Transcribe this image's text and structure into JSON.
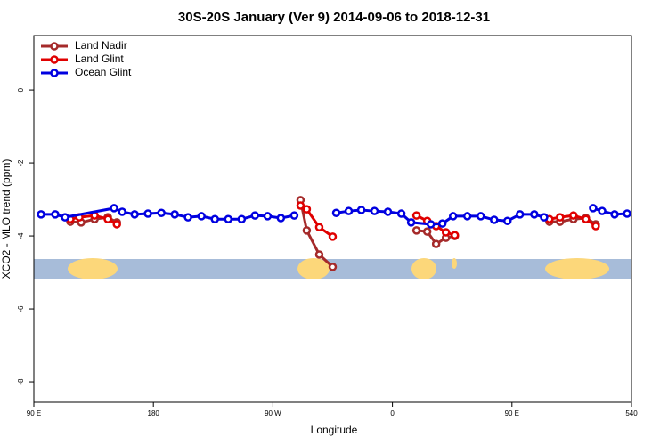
{
  "chart_data": {
    "type": "line",
    "title": "30S-20S January (Ver 9)   2014-09-06 to 2018-12-31",
    "x_label": "Longitude",
    "y_label": "XCO2 - MLO trend (ppm)",
    "xlim": [
      90,
      540
    ],
    "xticks": [
      {
        "value": 90,
        "label": "90 E"
      },
      180,
      {
        "value": 270,
        "label": "90 W"
      },
      {
        "value": 360,
        "label": "0"
      },
      {
        "value": 450,
        "label": "90 E"
      },
      540
    ],
    "ylim": [
      -8.56,
      1.49
    ],
    "yticks": [
      0,
      -2,
      -4,
      -6,
      -8
    ],
    "legend": "top-left",
    "series": [
      {
        "name": "Land Nadir",
        "color": "#a52a2a",
        "x": [
          117.5,
          125.6,
          135.7,
          145.7,
          152.5,
          null,
          290.8,
          295.5,
          304.9,
          315.0,
          null,
          378.1,
          386.2,
          392.9,
          400.3,
          407.0,
          null,
          478.2,
          486.2,
          496.3,
          505.7,
          513.1
        ],
        "values": [
          -3.61,
          -3.63,
          -3.54,
          -3.49,
          -3.63,
          null,
          -3.02,
          -3.85,
          -4.51,
          -4.85,
          null,
          -3.85,
          -3.88,
          -4.22,
          -4.05,
          -4.0,
          null,
          -3.61,
          -3.61,
          -3.54,
          -3.51,
          -3.68
        ]
      },
      {
        "name": "Land Glint",
        "color": "#e00000",
        "x": [
          117.5,
          124.3,
          135.7,
          145.7,
          152.5,
          null,
          290.8,
          295.5,
          304.9,
          315.0,
          null,
          378.1,
          386.2,
          392.9,
          400.3,
          407.0,
          null,
          478.2,
          486.2,
          496.3,
          505.7,
          513.1
        ],
        "values": [
          -3.54,
          -3.49,
          -3.44,
          -3.54,
          -3.68,
          null,
          -3.17,
          -3.27,
          -3.76,
          -4.02,
          null,
          -3.44,
          -3.59,
          -3.73,
          -3.9,
          -3.98,
          null,
          -3.54,
          -3.49,
          -3.44,
          -3.54,
          -3.73
        ]
      },
      {
        "name": "Ocean Glint",
        "color": "#0000e0",
        "x": [
          95.4,
          106.1,
          113.5,
          150.4,
          156.5,
          165.9,
          175.9,
          186.0,
          196.1,
          206.1,
          216.2,
          226.3,
          236.4,
          246.5,
          256.5,
          266.0,
          276.0,
          286.1,
          null,
          317.7,
          327.1,
          336.5,
          346.5,
          356.6,
          366.7,
          374.1,
          388.9,
          397.6,
          405.7,
          416.4,
          426.5,
          436.6,
          446.6,
          456.0,
          466.8,
          474.2,
          null,
          511.1,
          517.9,
          527.3,
          536.7
        ],
        "values": [
          -3.41,
          -3.41,
          -3.49,
          -3.24,
          -3.34,
          -3.41,
          -3.39,
          -3.37,
          -3.41,
          -3.49,
          -3.46,
          -3.54,
          -3.54,
          -3.54,
          -3.44,
          -3.46,
          -3.51,
          -3.44,
          null,
          -3.37,
          -3.32,
          -3.29,
          -3.32,
          -3.34,
          -3.39,
          -3.63,
          -3.68,
          -3.66,
          -3.46,
          -3.46,
          -3.46,
          -3.56,
          -3.59,
          -3.41,
          -3.41,
          -3.49,
          null,
          -3.24,
          -3.32,
          -3.41,
          -3.39
        ]
      }
    ]
  }
}
